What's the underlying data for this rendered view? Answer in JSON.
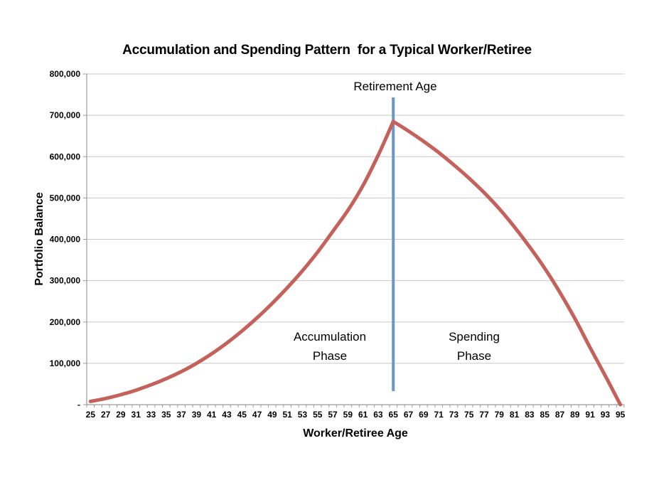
{
  "page": {
    "background_color": "#ffffff"
  },
  "chart_data": {
    "type": "line",
    "title": "Accumulation and Spending Pattern  for a Typical Worker/Retiree",
    "xlabel": "Worker/Retiree Age",
    "ylabel": "Portfolio Balance",
    "legend": "none",
    "grid": "horizontal",
    "ylim": [
      0,
      800000
    ],
    "ytick_step": 100000,
    "ytick_labels": [
      "-",
      "100,000",
      "200,000",
      "300,000",
      "400,000",
      "500,000",
      "600,000",
      "700,000",
      "800,000"
    ],
    "xtick_label_interval_years": 2,
    "xtick_minor_interval_years": 1,
    "x": [
      25,
      27,
      29,
      31,
      33,
      35,
      37,
      39,
      41,
      43,
      45,
      47,
      49,
      51,
      53,
      55,
      57,
      59,
      61,
      63,
      65,
      67,
      69,
      71,
      73,
      75,
      77,
      79,
      81,
      83,
      85,
      87,
      89,
      91,
      93,
      95
    ],
    "series": [
      {
        "name": "Portfolio Balance",
        "color": "#c4615a",
        "values": [
          8000,
          15000,
          24000,
          35000,
          48000,
          63000,
          80000,
          100000,
          123000,
          149000,
          178000,
          210000,
          245000,
          283000,
          324000,
          369000,
          419000,
          470000,
          530000,
          603000,
          685000,
          662000,
          637000,
          610000,
          580000,
          548000,
          513000,
          474000,
          430000,
          382000,
          330000,
          272000,
          208000,
          138000,
          70000,
          0
        ]
      }
    ],
    "peak": {
      "age": 65,
      "value": 685000
    },
    "reference_line": {
      "axis": "x",
      "value": 65,
      "color": "#6d96c6",
      "label": "Retirement Age"
    },
    "annotations": {
      "retirement": {
        "text": "Retirement Age"
      },
      "accumulation": {
        "text": "Accumulation\nPhase"
      },
      "spending": {
        "text": "Spending\nPhase"
      }
    },
    "axis_color": "#9a9a9a",
    "gridline_color": "#c8c8c8"
  }
}
